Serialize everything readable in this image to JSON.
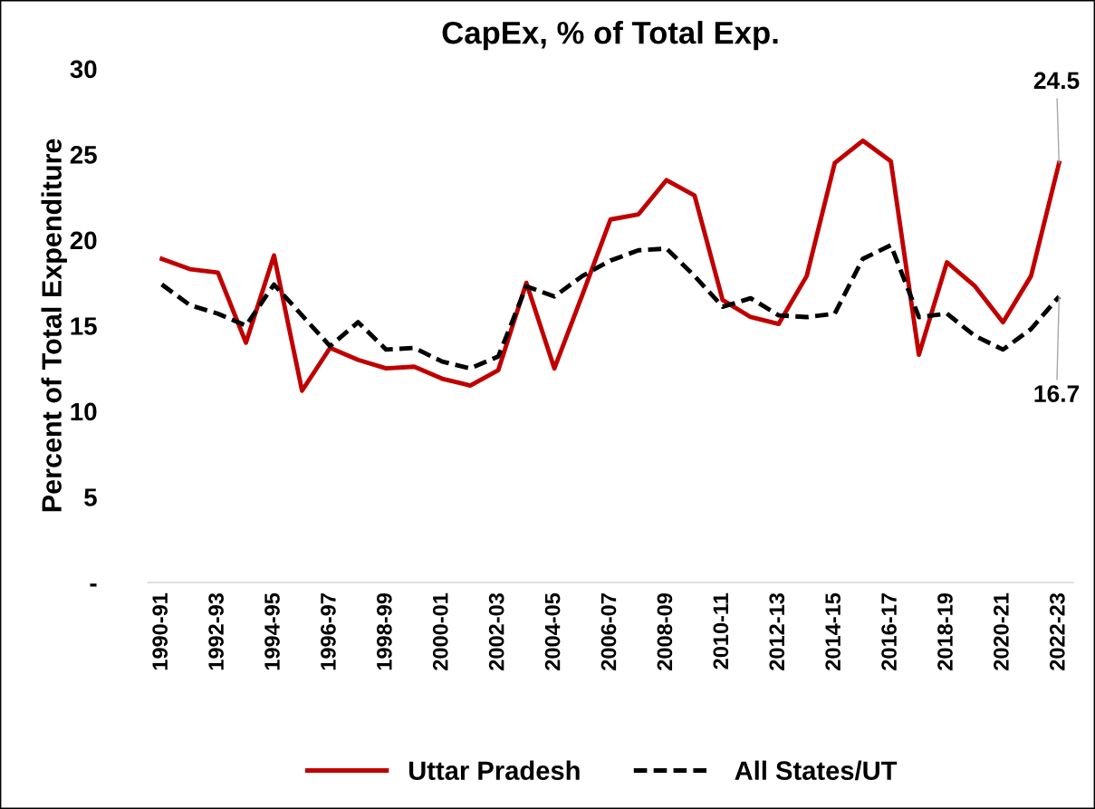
{
  "chart_data": {
    "type": "line",
    "title": "CapEx, % of Total Exp.",
    "ylabel": "Percent of Total Expenditure",
    "categories": [
      "1990-91",
      null,
      "1992-93",
      null,
      "1994-95",
      null,
      "1996-97",
      null,
      "1998-99",
      null,
      "2000-01",
      null,
      "2002-03",
      null,
      "2004-05",
      null,
      "2006-07",
      null,
      "2008-09",
      null,
      "2010-11",
      null,
      "2012-13",
      null,
      "2014-15",
      null,
      "2016-17",
      null,
      "2018-19",
      null,
      "2020-21",
      null,
      "2022-23"
    ],
    "series": [
      {
        "name": "Uttar Pradesh",
        "color": "#c00000",
        "line_style": "solid",
        "values": [
          18.9,
          18.3,
          18.1,
          14.0,
          19.1,
          11.2,
          13.7,
          13.0,
          12.5,
          12.6,
          11.9,
          11.5,
          12.4,
          17.5,
          12.5,
          16.8,
          21.2,
          21.5,
          23.5,
          22.6,
          16.5,
          15.5,
          15.1,
          17.9,
          24.5,
          25.8,
          24.6,
          13.3,
          18.7,
          17.3,
          15.2,
          17.9,
          24.5
        ]
      },
      {
        "name": "All States/UT",
        "color": "#000000",
        "line_style": "dashed",
        "values": [
          17.4,
          16.2,
          15.7,
          15.0,
          17.4,
          15.6,
          13.8,
          15.2,
          13.6,
          13.7,
          12.9,
          12.5,
          13.2,
          17.3,
          16.7,
          17.9,
          18.8,
          19.4,
          19.5,
          17.9,
          16.1,
          16.6,
          15.6,
          15.5,
          15.7,
          18.9,
          19.7,
          15.5,
          15.7,
          14.4,
          13.6,
          14.8,
          16.7
        ]
      }
    ],
    "ylim": [
      0,
      30
    ],
    "yticks": [
      {
        "value": 0,
        "label": "-"
      },
      5,
      10,
      15,
      20,
      25,
      30
    ],
    "annotations": [
      {
        "text": "24.5",
        "x": "2022-23",
        "y": 24.5
      },
      {
        "text": "16.7",
        "x": "2022-23",
        "y": 16.7
      }
    ],
    "grid": false,
    "legend": "bottom",
    "marker": "none"
  }
}
